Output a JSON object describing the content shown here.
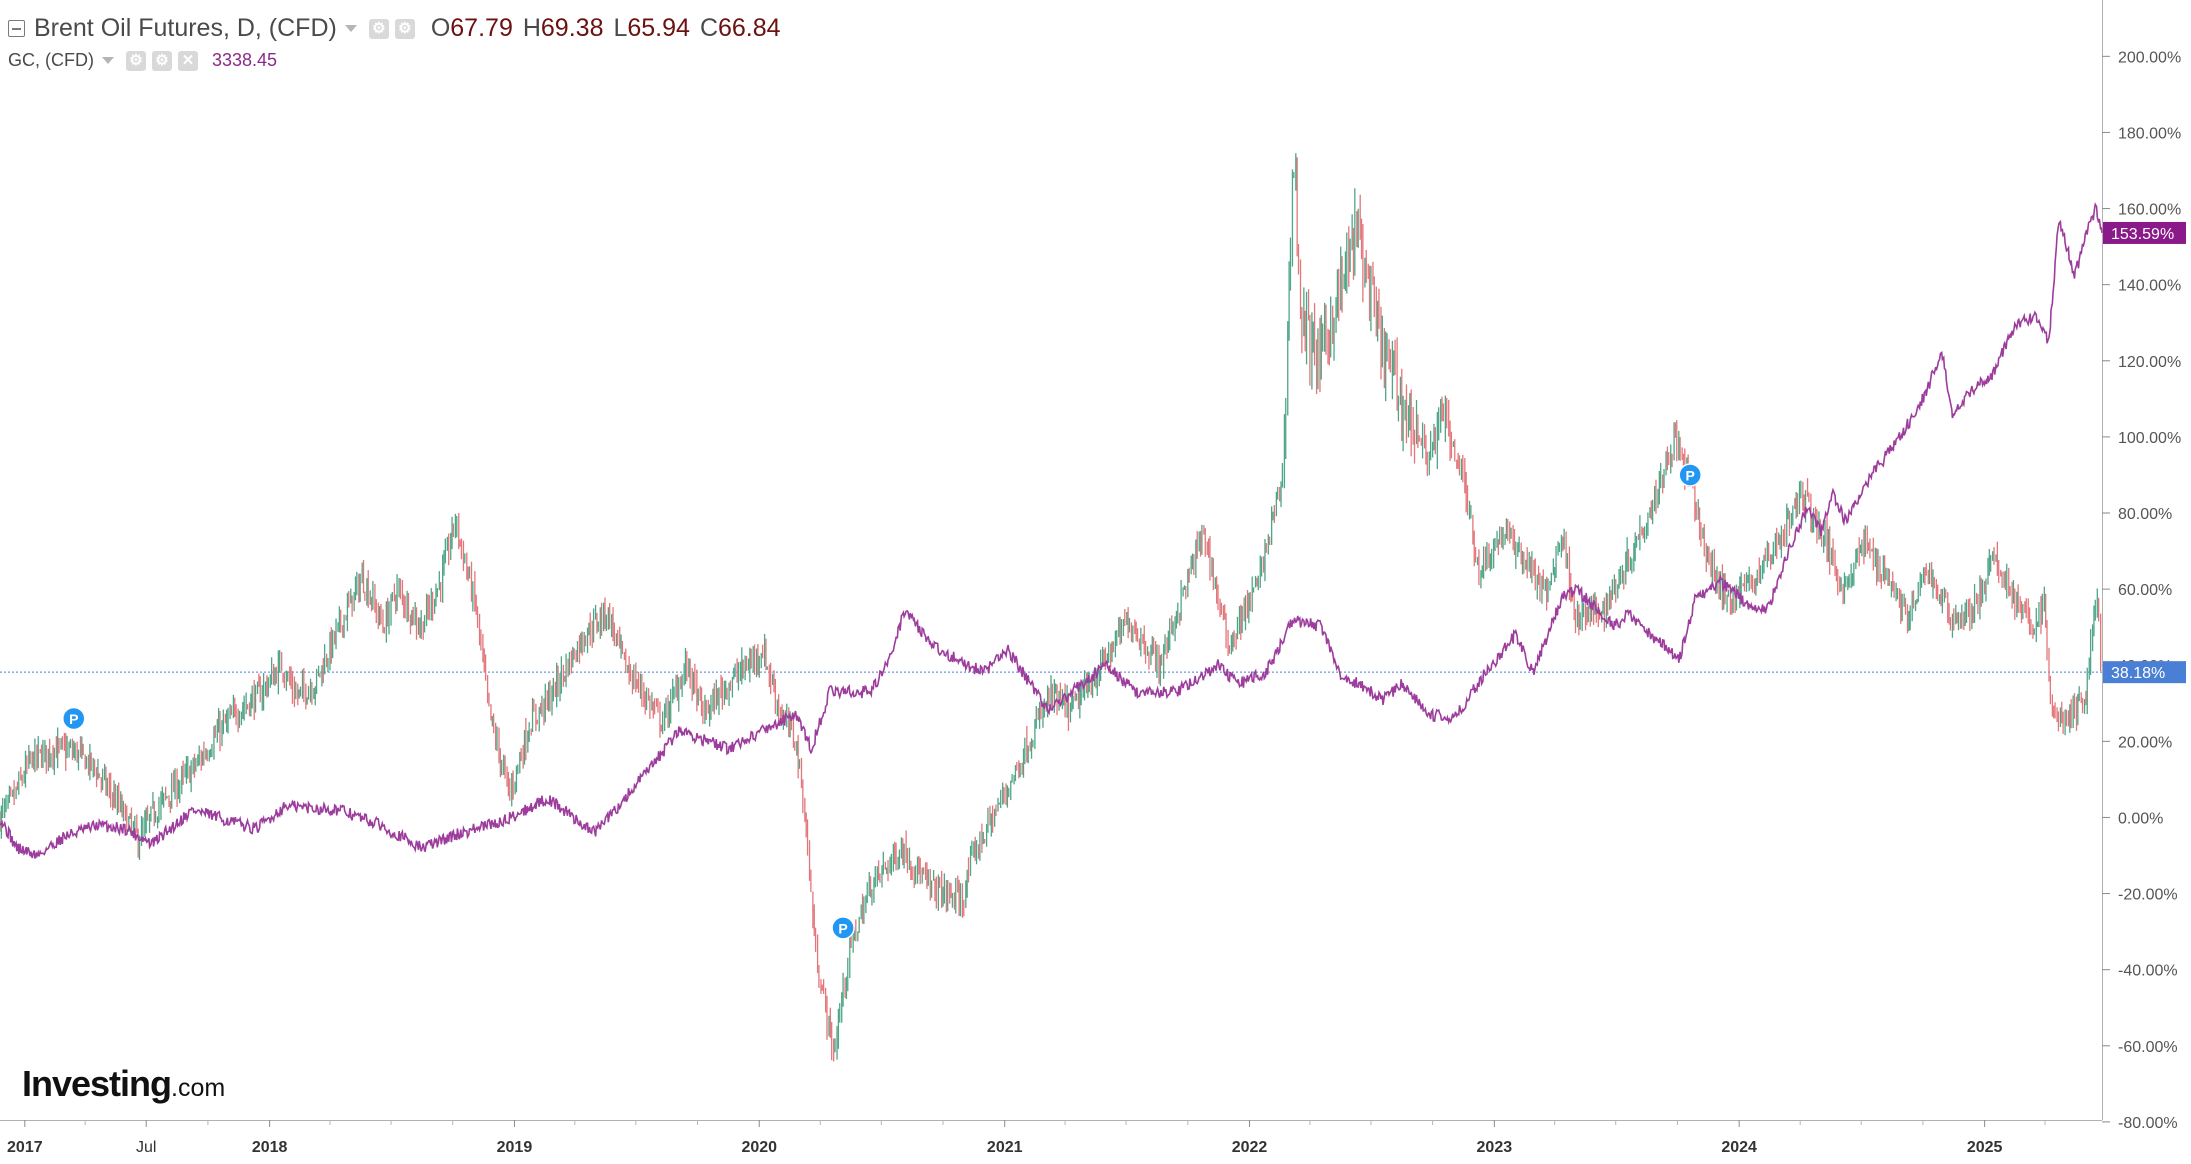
{
  "legend": {
    "title": "Brent Oil Futures, D, (CFD)",
    "ohlc": [
      {
        "key": "O",
        "value": "67.79"
      },
      {
        "key": "H",
        "value": "69.38"
      },
      {
        "key": "L",
        "value": "65.94"
      },
      {
        "key": "C",
        "value": "66.84"
      }
    ],
    "overlay_symbol": "GC, (CFD)",
    "overlay_value": "3338.45",
    "icons": [
      "collapse-icon",
      "settings-icon",
      "gear-icon",
      "close-icon"
    ]
  },
  "branding": {
    "name": "Investing",
    "suffix": ".com"
  },
  "colors": {
    "candle_up": "#4fa587",
    "candle_down": "#e3767a",
    "gold_line": "#9c3c9c",
    "gold_label_bg": "#8a1a8a",
    "brent_label_bg": "#4a7fd6",
    "baseline": "#4a7fd6",
    "marker": "#2196f3"
  },
  "chart_data": {
    "type": "line",
    "title": "",
    "xlabel": "",
    "ylabel": "",
    "y_unit": "%",
    "ylim": [
      -80,
      220
    ],
    "x_range": [
      "2016-11-25",
      "2025-06-25"
    ],
    "y_ticks": [
      "200.00%",
      "180.00%",
      "160.00%",
      "140.00%",
      "120.00%",
      "100.00%",
      "80.00%",
      "60.00%",
      "40.00%",
      "20.00%",
      "0.00%",
      "-20.00%",
      "-40.00%",
      "-60.00%",
      "-80.00%"
    ],
    "x_ticks": [
      {
        "label": "2017",
        "date": "2017-01-01"
      },
      {
        "label": "Jul",
        "date": "2017-07-01"
      },
      {
        "label": "2018",
        "date": "2018-01-01"
      },
      {
        "label": "2019",
        "date": "2019-01-01"
      },
      {
        "label": "2020",
        "date": "2020-01-01"
      },
      {
        "label": "2021",
        "date": "2021-01-01"
      },
      {
        "label": "2022",
        "date": "2022-01-01"
      },
      {
        "label": "2023",
        "date": "2023-01-01"
      },
      {
        "label": "2024",
        "date": "2024-01-01"
      },
      {
        "label": "2025",
        "date": "2025-01-01"
      }
    ],
    "grid": false,
    "baseline_value": 38.18,
    "series": [
      {
        "name": "Brent Oil Futures, D, (CFD)",
        "style": "candlestick",
        "last_label": "38.18%",
        "points": [
          [
            "2016-11-25",
            0
          ],
          [
            "2016-12-15",
            5
          ],
          [
            "2017-01-10",
            15
          ],
          [
            "2017-02-15",
            18
          ],
          [
            "2017-03-20",
            17
          ],
          [
            "2017-04-15",
            13
          ],
          [
            "2017-05-15",
            5
          ],
          [
            "2017-06-20",
            -6
          ],
          [
            "2017-07-15",
            2
          ],
          [
            "2017-08-15",
            8
          ],
          [
            "2017-09-15",
            14
          ],
          [
            "2017-10-15",
            22
          ],
          [
            "2017-11-15",
            28
          ],
          [
            "2017-12-15",
            32
          ],
          [
            "2018-01-20",
            40
          ],
          [
            "2018-02-10",
            32
          ],
          [
            "2018-03-10",
            35
          ],
          [
            "2018-04-15",
            50
          ],
          [
            "2018-05-20",
            63
          ],
          [
            "2018-06-20",
            50
          ],
          [
            "2018-07-10",
            60
          ],
          [
            "2018-08-15",
            50
          ],
          [
            "2018-09-15",
            63
          ],
          [
            "2018-10-05",
            78
          ],
          [
            "2018-11-05",
            55
          ],
          [
            "2018-11-25",
            27
          ],
          [
            "2018-12-25",
            6
          ],
          [
            "2019-01-25",
            25
          ],
          [
            "2019-02-25",
            32
          ],
          [
            "2019-04-15",
            48
          ],
          [
            "2019-05-20",
            54
          ],
          [
            "2019-06-15",
            40
          ],
          [
            "2019-07-15",
            32
          ],
          [
            "2019-08-10",
            25
          ],
          [
            "2019-09-16",
            40
          ],
          [
            "2019-10-10",
            27
          ],
          [
            "2019-11-15",
            35
          ],
          [
            "2020-01-07",
            44
          ],
          [
            "2020-02-01",
            28
          ],
          [
            "2020-02-25",
            20
          ],
          [
            "2020-03-10",
            0
          ],
          [
            "2020-03-25",
            -35
          ],
          [
            "2020-04-21",
            -62
          ],
          [
            "2020-05-15",
            -35
          ],
          [
            "2020-06-15",
            -18
          ],
          [
            "2020-08-01",
            -8
          ],
          [
            "2020-09-10",
            -18
          ],
          [
            "2020-10-30",
            -22
          ],
          [
            "2020-11-15",
            -10
          ],
          [
            "2020-12-20",
            2
          ],
          [
            "2021-01-20",
            13
          ],
          [
            "2021-03-10",
            32
          ],
          [
            "2021-04-10",
            28
          ],
          [
            "2021-05-20",
            38
          ],
          [
            "2021-07-05",
            52
          ],
          [
            "2021-08-20",
            40
          ],
          [
            "2021-10-25",
            75
          ],
          [
            "2021-12-01",
            45
          ],
          [
            "2022-01-15",
            62
          ],
          [
            "2022-02-20",
            90
          ],
          [
            "2022-03-08",
            175
          ],
          [
            "2022-03-20",
            130
          ],
          [
            "2022-04-15",
            120
          ],
          [
            "2022-05-20",
            140
          ],
          [
            "2022-06-10",
            155
          ],
          [
            "2022-07-15",
            125
          ],
          [
            "2022-08-15",
            110
          ],
          [
            "2022-09-25",
            95
          ],
          [
            "2022-10-20",
            105
          ],
          [
            "2022-11-15",
            90
          ],
          [
            "2022-12-09",
            65
          ],
          [
            "2023-01-15",
            75
          ],
          [
            "2023-02-15",
            68
          ],
          [
            "2023-03-20",
            58
          ],
          [
            "2023-04-12",
            75
          ],
          [
            "2023-05-04",
            52
          ],
          [
            "2023-06-15",
            55
          ],
          [
            "2023-07-20",
            68
          ],
          [
            "2023-08-20",
            80
          ],
          [
            "2023-09-27",
            100
          ],
          [
            "2023-10-20",
            88
          ],
          [
            "2023-11-15",
            68
          ],
          [
            "2023-12-13",
            57
          ],
          [
            "2024-01-20",
            62
          ],
          [
            "2024-02-20",
            70
          ],
          [
            "2024-04-05",
            85
          ],
          [
            "2024-05-15",
            70
          ],
          [
            "2024-06-05",
            60
          ],
          [
            "2024-07-05",
            72
          ],
          [
            "2024-08-15",
            62
          ],
          [
            "2024-09-10",
            52
          ],
          [
            "2024-10-07",
            65
          ],
          [
            "2024-11-15",
            52
          ],
          [
            "2024-12-15",
            54
          ],
          [
            "2025-01-15",
            68
          ],
          [
            "2025-02-15",
            58
          ],
          [
            "2025-03-10",
            50
          ],
          [
            "2025-04-01",
            55
          ],
          [
            "2025-04-10",
            28
          ],
          [
            "2025-05-05",
            25
          ],
          [
            "2025-06-01",
            32
          ],
          [
            "2025-06-18",
            60
          ],
          [
            "2025-06-25",
            38
          ]
        ]
      },
      {
        "name": "GC, (CFD)",
        "style": "line",
        "last_label": "153.59%",
        "points": [
          [
            "2016-11-25",
            0
          ],
          [
            "2016-12-20",
            -8
          ],
          [
            "2017-01-20",
            -10
          ],
          [
            "2017-03-01",
            -5
          ],
          [
            "2017-04-20",
            -2
          ],
          [
            "2017-06-01",
            -3
          ],
          [
            "2017-07-10",
            -7
          ],
          [
            "2017-09-08",
            2
          ],
          [
            "2017-12-12",
            -3
          ],
          [
            "2018-01-25",
            3
          ],
          [
            "2018-04-15",
            2
          ],
          [
            "2018-06-15",
            -2
          ],
          [
            "2018-08-16",
            -8
          ],
          [
            "2018-10-15",
            -4
          ],
          [
            "2018-12-15",
            -1
          ],
          [
            "2019-02-20",
            5
          ],
          [
            "2019-04-30",
            -4
          ],
          [
            "2019-06-01",
            2
          ],
          [
            "2019-08-01",
            15
          ],
          [
            "2019-09-04",
            23
          ],
          [
            "2019-11-15",
            18
          ],
          [
            "2020-01-08",
            23
          ],
          [
            "2020-02-24",
            27
          ],
          [
            "2020-03-19",
            18
          ],
          [
            "2020-04-15",
            33
          ],
          [
            "2020-06-15",
            33
          ],
          [
            "2020-07-15",
            42
          ],
          [
            "2020-08-06",
            55
          ],
          [
            "2020-09-15",
            45
          ],
          [
            "2020-11-30",
            38
          ],
          [
            "2021-01-06",
            44
          ],
          [
            "2021-03-08",
            28
          ],
          [
            "2021-06-01",
            40
          ],
          [
            "2021-07-15",
            33
          ],
          [
            "2021-09-15",
            33
          ],
          [
            "2021-11-16",
            40
          ],
          [
            "2021-12-15",
            35
          ],
          [
            "2022-01-25",
            38
          ],
          [
            "2022-03-08",
            52
          ],
          [
            "2022-04-18",
            50
          ],
          [
            "2022-05-16",
            38
          ],
          [
            "2022-07-20",
            31
          ],
          [
            "2022-08-15",
            35
          ],
          [
            "2022-09-28",
            27
          ],
          [
            "2022-11-03",
            26
          ],
          [
            "2022-12-15",
            37
          ],
          [
            "2023-02-02",
            48
          ],
          [
            "2023-02-28",
            38
          ],
          [
            "2023-04-13",
            58
          ],
          [
            "2023-05-04",
            60
          ],
          [
            "2023-06-29",
            50
          ],
          [
            "2023-07-20",
            54
          ],
          [
            "2023-08-21",
            48
          ],
          [
            "2023-10-05",
            42
          ],
          [
            "2023-10-27",
            57
          ],
          [
            "2023-12-04",
            62
          ],
          [
            "2024-01-15",
            56
          ],
          [
            "2024-02-14",
            55
          ],
          [
            "2024-03-10",
            68
          ],
          [
            "2024-04-12",
            82
          ],
          [
            "2024-05-02",
            75
          ],
          [
            "2024-05-20",
            85
          ],
          [
            "2024-06-07",
            78
          ],
          [
            "2024-07-17",
            90
          ],
          [
            "2024-08-20",
            98
          ],
          [
            "2024-09-26",
            108
          ],
          [
            "2024-10-30",
            122
          ],
          [
            "2024-11-14",
            105
          ],
          [
            "2024-12-12",
            112
          ],
          [
            "2025-01-15",
            117
          ],
          [
            "2025-02-11",
            128
          ],
          [
            "2025-03-15",
            132
          ],
          [
            "2025-04-07",
            125
          ],
          [
            "2025-04-22",
            158
          ],
          [
            "2025-05-15",
            142
          ],
          [
            "2025-06-05",
            155
          ],
          [
            "2025-06-16",
            160
          ],
          [
            "2025-06-25",
            153.59
          ]
        ]
      }
    ],
    "markers": [
      {
        "label": "P",
        "date": "2017-03-15",
        "value": 26
      },
      {
        "label": "P",
        "date": "2020-05-05",
        "value": -29
      },
      {
        "label": "P",
        "date": "2023-10-20",
        "value": 90
      }
    ]
  }
}
